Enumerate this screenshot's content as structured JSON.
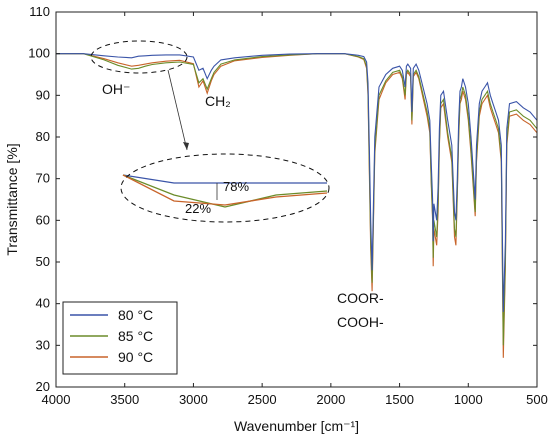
{
  "chart_data": {
    "type": "line",
    "title": "",
    "xlabel": "Wavenumber [cm⁻¹]",
    "ylabel": "Transmittance [%]",
    "xlim": [
      4000,
      500
    ],
    "x_reversed": true,
    "ylim": [
      20,
      110
    ],
    "xticks": [
      4000,
      3500,
      3000,
      2500,
      2000,
      1500,
      1000,
      500
    ],
    "yticks": [
      20,
      30,
      40,
      50,
      60,
      70,
      80,
      90,
      100,
      110
    ],
    "grid": false,
    "legend": {
      "position": "bottom-left",
      "entries": [
        "80 °C",
        "85 °C",
        "90 °C"
      ]
    },
    "series": [
      {
        "name": "80 °C",
        "color": "#3a54a8",
        "x": [
          4000,
          3800,
          3650,
          3550,
          3450,
          3400,
          3350,
          3300,
          3200,
          3100,
          3000,
          2960,
          2930,
          2900,
          2870,
          2850,
          2800,
          2700,
          2500,
          2300,
          2100,
          1900,
          1800,
          1760,
          1740,
          1730,
          1720,
          1710,
          1700,
          1680,
          1650,
          1600,
          1550,
          1500,
          1480,
          1460,
          1450,
          1440,
          1420,
          1410,
          1400,
          1380,
          1360,
          1300,
          1280,
          1270,
          1260,
          1255,
          1250,
          1240,
          1230,
          1220,
          1210,
          1200,
          1180,
          1150,
          1120,
          1100,
          1090,
          1080,
          1070,
          1060,
          1050,
          1040,
          1020,
          1000,
          980,
          960,
          950,
          940,
          920,
          900,
          880,
          860,
          840,
          820,
          800,
          780,
          760,
          745,
          730,
          720,
          700,
          650,
          600,
          550,
          500
        ],
        "y": [
          100,
          100,
          99.5,
          99.2,
          99.0,
          99.4,
          99.5,
          99.6,
          99.7,
          99.7,
          99.2,
          96,
          96.5,
          94,
          96,
          97,
          98.5,
          99,
          99.6,
          99.9,
          100,
          100,
          99.6,
          99.3,
          98,
          93,
          78,
          60,
          48,
          80,
          92,
          95,
          96.5,
          97,
          96,
          92,
          97,
          97.5,
          96.5,
          86,
          96.5,
          97.5,
          96,
          88,
          84,
          74,
          65,
          55,
          64,
          62,
          60,
          68,
          82,
          90,
          91,
          84,
          78,
          62,
          60,
          70,
          84,
          91,
          92,
          94,
          92,
          88,
          80,
          70,
          65,
          78,
          88,
          91,
          92,
          93,
          90,
          88,
          86,
          84,
          78,
          38,
          55,
          82,
          88,
          88.5,
          87,
          86,
          84
        ]
      },
      {
        "name": "85 °C",
        "color": "#6b8c2a",
        "x": [
          4000,
          3800,
          3650,
          3550,
          3450,
          3400,
          3350,
          3300,
          3200,
          3100,
          3000,
          2960,
          2930,
          2900,
          2870,
          2850,
          2800,
          2700,
          2500,
          2300,
          2100,
          1900,
          1800,
          1760,
          1740,
          1730,
          1720,
          1710,
          1700,
          1680,
          1650,
          1600,
          1550,
          1500,
          1480,
          1460,
          1450,
          1440,
          1420,
          1410,
          1400,
          1380,
          1360,
          1300,
          1280,
          1270,
          1260,
          1255,
          1250,
          1240,
          1230,
          1220,
          1210,
          1200,
          1180,
          1150,
          1120,
          1100,
          1090,
          1080,
          1070,
          1060,
          1050,
          1040,
          1020,
          1000,
          980,
          960,
          950,
          940,
          920,
          900,
          880,
          860,
          840,
          820,
          800,
          780,
          760,
          745,
          730,
          720,
          700,
          650,
          600,
          550,
          500
        ],
        "y": [
          100,
          100,
          98.5,
          97.2,
          96.3,
          96.5,
          97.0,
          97.4,
          97.8,
          98.0,
          97.4,
          93,
          94,
          91.5,
          94,
          95.5,
          97.5,
          98.5,
          99.3,
          99.7,
          100,
          100,
          99.3,
          98.8,
          97,
          91,
          74,
          55,
          45,
          77,
          90,
          93.5,
          95.5,
          96,
          94.5,
          90,
          95.5,
          96,
          95,
          84,
          95,
          96,
          94.5,
          86,
          82,
          70,
          61,
          51,
          60,
          58,
          56,
          64,
          79,
          88,
          89,
          81,
          75,
          58,
          56,
          67,
          81,
          89,
          90,
          92,
          90,
          85,
          77,
          67,
          62,
          75,
          86,
          89,
          90,
          91,
          88,
          86,
          84,
          82,
          75,
          30,
          51,
          79,
          86,
          86.5,
          85,
          84,
          82
        ]
      },
      {
        "name": "90 °C",
        "color": "#c8642a",
        "x": [
          4000,
          3800,
          3650,
          3550,
          3450,
          3400,
          3350,
          3300,
          3200,
          3100,
          3000,
          2960,
          2930,
          2900,
          2870,
          2850,
          2800,
          2700,
          2500,
          2300,
          2100,
          1900,
          1800,
          1760,
          1740,
          1730,
          1720,
          1710,
          1700,
          1680,
          1650,
          1600,
          1550,
          1500,
          1480,
          1460,
          1450,
          1440,
          1420,
          1410,
          1400,
          1380,
          1360,
          1300,
          1280,
          1270,
          1260,
          1255,
          1250,
          1240,
          1230,
          1220,
          1210,
          1200,
          1180,
          1150,
          1120,
          1100,
          1090,
          1080,
          1070,
          1060,
          1050,
          1040,
          1020,
          1000,
          980,
          960,
          950,
          940,
          920,
          900,
          880,
          860,
          840,
          820,
          800,
          780,
          760,
          745,
          730,
          720,
          700,
          650,
          600,
          550,
          500
        ],
        "y": [
          100,
          100,
          98.8,
          97.8,
          97.0,
          97.2,
          97.5,
          97.8,
          98.2,
          98.4,
          97.6,
          92,
          93.5,
          90.5,
          93.5,
          95,
          97,
          98.3,
          99.1,
          99.6,
          100,
          100,
          99.2,
          98.6,
          96.5,
          90,
          72,
          53,
          43,
          76,
          89,
          93,
          95,
          95.5,
          94,
          89,
          95,
          95.5,
          94.5,
          83,
          94.5,
          95.5,
          94,
          85,
          81,
          69,
          60,
          49,
          58,
          56,
          54,
          62,
          78,
          87,
          88,
          80,
          74,
          56,
          54,
          66,
          80,
          88,
          89,
          91,
          89,
          84,
          76,
          66,
          61,
          74,
          85,
          88,
          89,
          90,
          87,
          85,
          83,
          81,
          74,
          27,
          49,
          78,
          85,
          85.5,
          84,
          83,
          81
        ]
      }
    ],
    "inset": {
      "labels": [
        "78%",
        "22%"
      ],
      "x": [
        0,
        0.25,
        0.5,
        0.75,
        1
      ],
      "y_80": [
        72,
        70,
        70,
        70,
        70
      ],
      "y_85": [
        72,
        67,
        64,
        67,
        68
      ],
      "y_90": [
        72,
        65.5,
        64.5,
        66.5,
        67.5
      ]
    },
    "annotations": [
      {
        "text": "OH⁻",
        "x": 3470,
        "y": 93
      },
      {
        "text": "CH₂",
        "x": 2840,
        "y": 91
      },
      {
        "text": "COOR-",
        "x": 1640,
        "y": 38
      },
      {
        "text": "COOH-",
        "x": 1640,
        "y": 33
      }
    ]
  }
}
